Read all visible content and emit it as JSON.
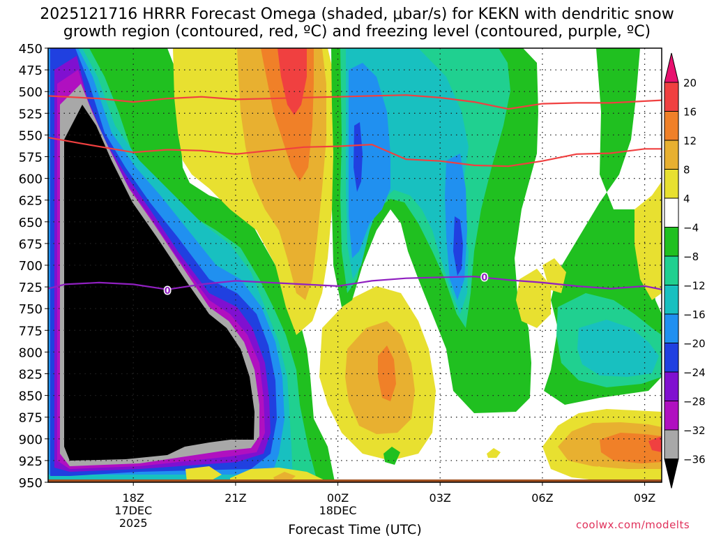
{
  "title": {
    "line1": "2025121716 HRRR Forecast Omega (shaded, μbar/s) for KEKN with dendritic snow",
    "line2": "growth region (contoured, red, ºC) and freezing level (contoured, purple, ºC)"
  },
  "credit": "coolwx.com/modelts",
  "chart_data": {
    "type": "heatmap",
    "title": "2025121716 HRRR Forecast Omega (shaded, μbar/s) for KEKN with dendritic snow growth region (contoured, red, ºC) and freezing level (contoured, purple, ºC)",
    "xlabel": "Forecast Time (UTC)",
    "ylabel": "",
    "x_range_hours": [
      15.5,
      33.5
    ],
    "ylim": [
      450,
      950
    ],
    "y_inverted": true,
    "y_ticks": [
      450,
      475,
      500,
      525,
      550,
      575,
      600,
      625,
      650,
      675,
      700,
      725,
      750,
      775,
      800,
      825,
      850,
      875,
      900,
      925,
      950
    ],
    "x_ticks": [
      {
        "hour": 18,
        "label": "18Z",
        "sub1": "17DEC",
        "sub2": "2025"
      },
      {
        "hour": 21,
        "label": "21Z",
        "sub1": "",
        "sub2": ""
      },
      {
        "hour": 24,
        "label": "00Z",
        "sub1": "18DEC",
        "sub2": ""
      },
      {
        "hour": 27,
        "label": "03Z",
        "sub1": "",
        "sub2": ""
      },
      {
        "hour": 30,
        "label": "06Z",
        "sub1": "",
        "sub2": ""
      },
      {
        "hour": 33,
        "label": "09Z",
        "sub1": "",
        "sub2": ""
      }
    ],
    "grid": true,
    "colorbar": {
      "labels": [
        "20",
        "16",
        "12",
        "8",
        "4",
        "−4",
        "−8",
        "−12",
        "−16",
        "−20",
        "−24",
        "−28",
        "−32",
        "−36"
      ],
      "bins_top_to_bottom": [
        {
          "color": "#e8106e",
          "label": "over"
        },
        {
          "color": "#f04040",
          "label": "16 to 20"
        },
        {
          "color": "#f08028",
          "label": "12 to 16"
        },
        {
          "color": "#e8b030",
          "label": "8 to 12"
        },
        {
          "color": "#e8e030",
          "label": "4 to 8"
        },
        {
          "color": "#ffffff",
          "label": "-4 to 4"
        },
        {
          "color": "#20c020",
          "label": "-8 to -4"
        },
        {
          "color": "#20d090",
          "label": "-12 to -8"
        },
        {
          "color": "#18c0c0",
          "label": "-16 to -12"
        },
        {
          "color": "#2090f0",
          "label": "-20 to -16"
        },
        {
          "color": "#2040e0",
          "label": "-24 to -20"
        },
        {
          "color": "#8010d0",
          "label": "-28 to -24"
        },
        {
          "color": "#b010c0",
          "label": "-32 to -28"
        },
        {
          "color": "#a8a8a8",
          "label": "-36 to -32"
        },
        {
          "color": "#000000",
          "label": "under"
        }
      ]
    },
    "series": [
      {
        "role": "dendritic growth contour upper",
        "color": "#f04040",
        "points": [
          [
            15.5,
            505
          ],
          [
            16,
            506
          ],
          [
            17,
            508
          ],
          [
            18,
            512
          ],
          [
            19,
            508
          ],
          [
            20,
            506
          ],
          [
            21,
            509
          ],
          [
            22,
            508
          ],
          [
            23,
            507
          ],
          [
            24,
            506
          ],
          [
            25,
            505
          ],
          [
            26,
            504
          ],
          [
            27,
            507
          ],
          [
            28,
            512
          ],
          [
            29,
            520
          ],
          [
            30,
            514
          ],
          [
            31,
            513
          ],
          [
            32,
            513
          ],
          [
            33,
            511
          ],
          [
            33.5,
            510
          ]
        ]
      },
      {
        "role": "dendritic growth contour lower",
        "color": "#f04040",
        "points": [
          [
            15.5,
            553
          ],
          [
            16.5,
            560
          ],
          [
            18,
            570
          ],
          [
            19,
            567
          ],
          [
            20,
            568
          ],
          [
            21,
            572
          ],
          [
            22,
            568
          ],
          [
            23,
            564
          ],
          [
            24,
            563
          ],
          [
            25,
            561
          ],
          [
            26,
            578
          ],
          [
            27,
            580
          ],
          [
            28,
            585
          ],
          [
            29,
            586
          ],
          [
            30,
            580
          ],
          [
            31,
            572
          ],
          [
            32,
            571
          ],
          [
            33,
            566
          ],
          [
            33.5,
            566
          ]
        ]
      },
      {
        "role": "freezing level",
        "color": "#9020c0",
        "contour_label": "0",
        "points": [
          [
            15.5,
            727
          ],
          [
            16,
            722
          ],
          [
            17,
            720
          ],
          [
            18,
            722
          ],
          [
            19,
            728
          ],
          [
            20,
            722
          ],
          [
            21,
            718
          ],
          [
            22,
            720
          ],
          [
            23,
            722
          ],
          [
            24,
            724
          ],
          [
            25,
            718
          ],
          [
            26,
            715
          ],
          [
            27,
            714
          ],
          [
            28,
            713
          ],
          [
            29,
            717
          ],
          [
            30,
            720
          ],
          [
            31,
            724
          ],
          [
            32,
            727
          ],
          [
            33,
            724
          ],
          [
            33.5,
            728
          ]
        ]
      }
    ]
  }
}
